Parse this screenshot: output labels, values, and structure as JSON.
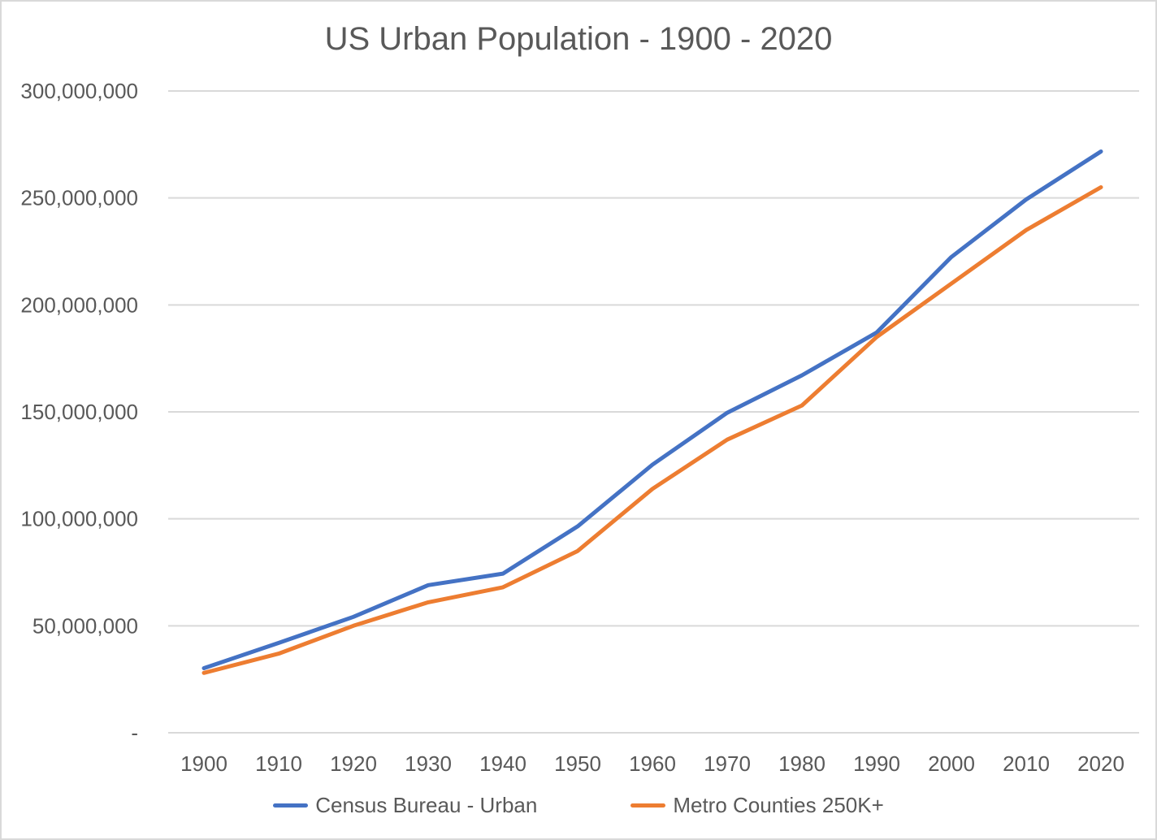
{
  "chart": {
    "colors": {
      "series1": "#4472C4",
      "series2": "#ED7D31",
      "gridline": "#d9d9d9",
      "text": "#595959",
      "frame_border": "#d9d9d9",
      "background": "#ffffff"
    }
  },
  "chart_data": {
    "type": "line",
    "title": "US Urban Population - 1900 - 2020",
    "x": [
      1900,
      1910,
      1920,
      1930,
      1940,
      1950,
      1960,
      1970,
      1980,
      1990,
      2000,
      2010,
      2020
    ],
    "x_tick_labels": [
      "1900",
      "1910",
      "1920",
      "1930",
      "1940",
      "1950",
      "1960",
      "1970",
      "1980",
      "1990",
      "2000",
      "2010",
      "2020"
    ],
    "series": [
      {
        "name": "Census Bureau - Urban",
        "color": "#4472C4",
        "values": [
          30200000,
          42000000,
          54200000,
          69000000,
          74400000,
          96500000,
          125300000,
          149600000,
          167100000,
          187100000,
          222400000,
          249300000,
          271700000
        ]
      },
      {
        "name": "Metro Counties 250K+",
        "color": "#ED7D31",
        "values": [
          28000000,
          37000000,
          50000000,
          61000000,
          68000000,
          85000000,
          114000000,
          137000000,
          153000000,
          185000000,
          210000000,
          235000000,
          255000000
        ]
      }
    ],
    "ylim": [
      0,
      300000000
    ],
    "y_tick_interval": 50000000,
    "y_tick_labels": [
      "-",
      "50,000,000",
      "100,000,000",
      "150,000,000",
      "200,000,000",
      "250,000,000",
      "300,000,000"
    ],
    "grid": "horizontal-only",
    "legend_position": "bottom"
  }
}
